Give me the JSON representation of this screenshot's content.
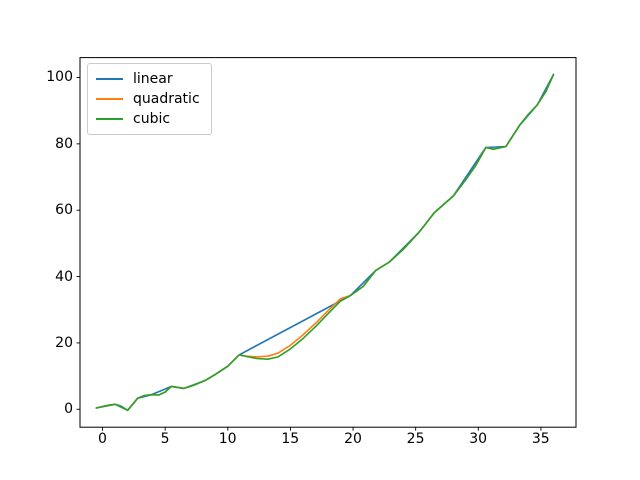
{
  "figure": {
    "background": "#ffffff",
    "spine_color": "#000000",
    "tick_color": "#000000",
    "legend_border_color": "#cccccc"
  },
  "chart_data": {
    "type": "line",
    "title": "",
    "xlabel": "",
    "ylabel": "",
    "grid": false,
    "xlim": [
      -1.8,
      37.8
    ],
    "ylim": [
      -5.4,
      106.0
    ],
    "xticks": [
      0,
      5,
      10,
      15,
      20,
      25,
      30,
      35
    ],
    "yticks": [
      0,
      20,
      40,
      60,
      80,
      100
    ],
    "legend": {
      "position": "upper left"
    },
    "series": [
      {
        "name": "linear",
        "color": "#1f77b4",
        "points": [
          [
            -0.5,
            0.4
          ],
          [
            1,
            1.5
          ],
          [
            2,
            -0.3
          ],
          [
            2.8,
            3.3
          ],
          [
            3.9,
            4.4
          ],
          [
            5.5,
            6.9
          ],
          [
            6.5,
            6.3
          ],
          [
            8.2,
            8.7
          ],
          [
            9,
            10.5
          ],
          [
            10,
            13
          ],
          [
            10.9,
            16.4
          ],
          [
            19.8,
            34.3
          ],
          [
            21.8,
            41.8
          ],
          [
            22.9,
            44.4
          ],
          [
            25.3,
            53.5
          ],
          [
            26.5,
            59.3
          ],
          [
            28,
            64.3
          ],
          [
            30.6,
            78.9
          ],
          [
            32.2,
            79.2
          ],
          [
            33.3,
            85.6
          ],
          [
            34.7,
            91.7
          ],
          [
            36,
            100.9
          ]
        ]
      },
      {
        "name": "quadratic",
        "color": "#ff7f0e",
        "points": [
          [
            -0.5,
            0.4
          ],
          [
            0.3,
            1.1
          ],
          [
            1,
            1.5
          ],
          [
            1.5,
            0.9
          ],
          [
            2,
            -0.3
          ],
          [
            2.4,
            1.4
          ],
          [
            2.8,
            3.3
          ],
          [
            3.3,
            4.1
          ],
          [
            3.9,
            4.4
          ],
          [
            4.5,
            4.3
          ],
          [
            5,
            5.2
          ],
          [
            5.5,
            6.9
          ],
          [
            6,
            6.6
          ],
          [
            6.5,
            6.3
          ],
          [
            7.3,
            7.3
          ],
          [
            8.2,
            8.7
          ],
          [
            9,
            10.5
          ],
          [
            10,
            13
          ],
          [
            10.9,
            16.4
          ],
          [
            11.5,
            16.0
          ],
          [
            12.3,
            15.8
          ],
          [
            13.2,
            16.0
          ],
          [
            14,
            16.9
          ],
          [
            15,
            19.3
          ],
          [
            16,
            22.4
          ],
          [
            17,
            25.9
          ],
          [
            18,
            29.7
          ],
          [
            19,
            33.3
          ],
          [
            19.8,
            34.3
          ],
          [
            20.8,
            37.0
          ],
          [
            21.8,
            41.8
          ],
          [
            22.9,
            44.4
          ],
          [
            24,
            48.2
          ],
          [
            25.3,
            53.5
          ],
          [
            26.5,
            59.3
          ],
          [
            28,
            64.3
          ],
          [
            29,
            69.2
          ],
          [
            29.8,
            73.5
          ],
          [
            30.6,
            78.9
          ],
          [
            31.2,
            78.4
          ],
          [
            32.2,
            79.2
          ],
          [
            33.3,
            85.6
          ],
          [
            34,
            88.9
          ],
          [
            34.7,
            91.7
          ],
          [
            35.4,
            95.8
          ],
          [
            36,
            100.9
          ]
        ]
      },
      {
        "name": "cubic",
        "color": "#2ca02c",
        "points": [
          [
            -0.5,
            0.4
          ],
          [
            0.3,
            1.1
          ],
          [
            1,
            1.5
          ],
          [
            1.5,
            0.9
          ],
          [
            2,
            -0.3
          ],
          [
            2.4,
            1.4
          ],
          [
            2.8,
            3.3
          ],
          [
            3.3,
            4.1
          ],
          [
            3.9,
            4.4
          ],
          [
            4.5,
            4.3
          ],
          [
            5,
            5.2
          ],
          [
            5.5,
            6.9
          ],
          [
            6,
            6.6
          ],
          [
            6.5,
            6.3
          ],
          [
            7.3,
            7.3
          ],
          [
            8.2,
            8.7
          ],
          [
            9,
            10.5
          ],
          [
            10,
            13
          ],
          [
            10.9,
            16.4
          ],
          [
            11.5,
            15.9
          ],
          [
            12.3,
            15.3
          ],
          [
            13.2,
            15.1
          ],
          [
            14,
            15.8
          ],
          [
            15,
            18.2
          ],
          [
            16,
            21.3
          ],
          [
            17,
            24.9
          ],
          [
            18,
            28.8
          ],
          [
            19,
            32.6
          ],
          [
            19.8,
            34.3
          ],
          [
            20.8,
            37.0
          ],
          [
            21.8,
            41.8
          ],
          [
            22.9,
            44.4
          ],
          [
            24,
            48.2
          ],
          [
            25.3,
            53.5
          ],
          [
            26.5,
            59.3
          ],
          [
            28,
            64.3
          ],
          [
            29,
            69.2
          ],
          [
            29.8,
            73.5
          ],
          [
            30.6,
            78.9
          ],
          [
            31.2,
            78.4
          ],
          [
            32.2,
            79.2
          ],
          [
            33.3,
            85.6
          ],
          [
            34,
            88.9
          ],
          [
            34.7,
            91.7
          ],
          [
            35.4,
            95.8
          ],
          [
            36,
            100.9
          ]
        ]
      }
    ]
  }
}
